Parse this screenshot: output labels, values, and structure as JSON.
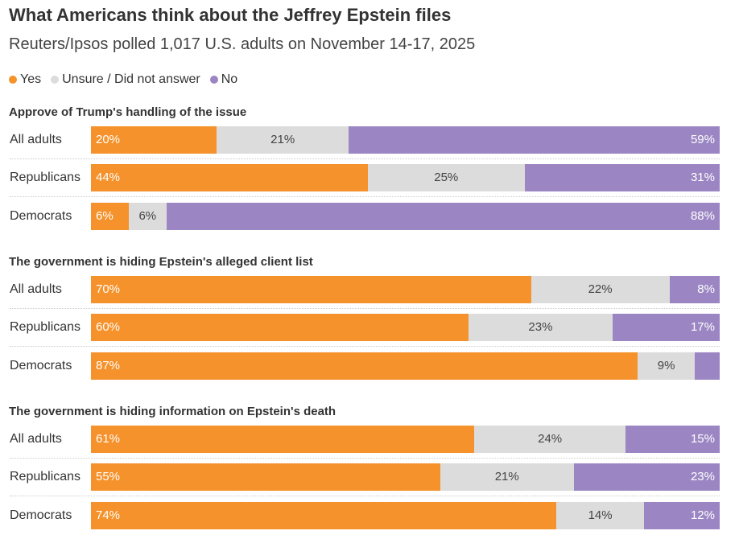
{
  "title": "What Americans think about the Jeffrey Epstein files",
  "subtitle": "Reuters/Ipsos polled 1,017 U.S. adults on November 14-17, 2025",
  "colors": {
    "yes": "#f5922b",
    "unsure": "#dcdcdc",
    "no": "#9b86c3"
  },
  "legend": [
    {
      "key": "yes",
      "label": "Yes"
    },
    {
      "key": "unsure",
      "label": "Unsure / Did not answer"
    },
    {
      "key": "no",
      "label": "No"
    }
  ],
  "chart_data": {
    "type": "bar",
    "stacked": true,
    "orientation": "horizontal",
    "unit": "%",
    "series_names": [
      "Yes",
      "Unsure / Did not answer",
      "No"
    ],
    "panels": [
      {
        "title": "Approve of Trump's handling of the issue",
        "rows": [
          {
            "label": "All adults",
            "yes": 20,
            "unsure": 21,
            "no": 59,
            "yes_label": "20%",
            "unsure_label": "21%",
            "no_label": "59%"
          },
          {
            "label": "Republicans",
            "yes": 44,
            "unsure": 25,
            "no": 31,
            "yes_label": "44%",
            "unsure_label": "25%",
            "no_label": "31%"
          },
          {
            "label": "Democrats",
            "yes": 6,
            "unsure": 6,
            "no": 88,
            "yes_label": "6%",
            "unsure_label": "6%",
            "no_label": "88%"
          }
        ]
      },
      {
        "title": "The government is hiding Epstein's alleged client list",
        "rows": [
          {
            "label": "All adults",
            "yes": 70,
            "unsure": 22,
            "no": 8,
            "yes_label": "70%",
            "unsure_label": "22%",
            "no_label": "8%"
          },
          {
            "label": "Republicans",
            "yes": 60,
            "unsure": 23,
            "no": 17,
            "yes_label": "60%",
            "unsure_label": "23%",
            "no_label": "17%"
          },
          {
            "label": "Democrats",
            "yes": 87,
            "unsure": 9,
            "no": 4,
            "yes_label": "87%",
            "unsure_label": "9%",
            "no_label": ""
          }
        ]
      },
      {
        "title": "The government is hiding information on Epstein's death",
        "rows": [
          {
            "label": "All adults",
            "yes": 61,
            "unsure": 24,
            "no": 15,
            "yes_label": "61%",
            "unsure_label": "24%",
            "no_label": "15%"
          },
          {
            "label": "Republicans",
            "yes": 55,
            "unsure": 21,
            "no": 23,
            "yes_label": "55%",
            "unsure_label": "21%",
            "no_label": "23%"
          },
          {
            "label": "Democrats",
            "yes": 74,
            "unsure": 14,
            "no": 12,
            "yes_label": "74%",
            "unsure_label": "14%",
            "no_label": "12%"
          }
        ]
      }
    ]
  }
}
